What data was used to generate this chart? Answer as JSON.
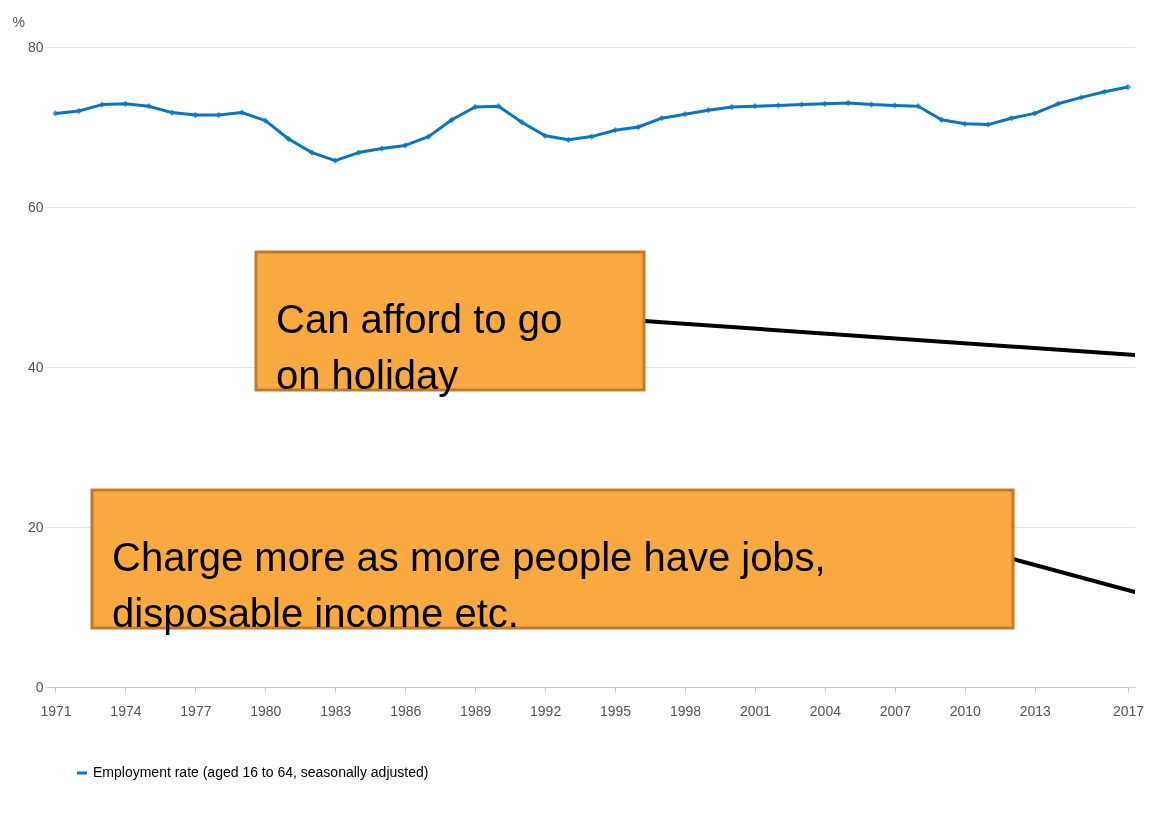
{
  "chart_data": {
    "type": "line",
    "ylabel": "%",
    "x": [
      1971,
      1972,
      1973,
      1974,
      1975,
      1976,
      1977,
      1978,
      1979,
      1980,
      1981,
      1982,
      1983,
      1984,
      1985,
      1986,
      1987,
      1988,
      1989,
      1990,
      1991,
      1992,
      1993,
      1994,
      1995,
      1996,
      1997,
      1998,
      1999,
      2000,
      2001,
      2002,
      2003,
      2004,
      2005,
      2006,
      2007,
      2008,
      2009,
      2010,
      2011,
      2012,
      2013,
      2014,
      2015,
      2016,
      2017
    ],
    "series": [
      {
        "name": "Employment rate (aged 16 to 64, seasonally adjusted)",
        "color": "#0a75c0",
        "values": [
          71.7,
          72.0,
          72.8,
          72.9,
          72.6,
          71.8,
          71.5,
          71.5,
          71.8,
          70.8,
          68.5,
          66.8,
          65.8,
          66.8,
          67.3,
          67.7,
          68.8,
          70.9,
          72.5,
          72.6,
          70.6,
          68.9,
          68.4,
          68.8,
          69.6,
          70.0,
          71.1,
          71.6,
          72.1,
          72.5,
          72.6,
          72.7,
          72.8,
          72.9,
          73.0,
          72.8,
          72.7,
          72.6,
          70.9,
          70.4,
          70.3,
          71.1,
          71.7,
          72.9,
          73.7,
          74.4,
          75.0
        ]
      }
    ],
    "xlim": [
      1970.55,
      2017.3
    ],
    "xticks": [
      1971,
      1974,
      1977,
      1980,
      1983,
      1986,
      1989,
      1992,
      1995,
      1998,
      2001,
      2004,
      2007,
      2010,
      2013,
      2017
    ],
    "ylim": [
      0,
      80
    ],
    "yticks": [
      0,
      20,
      40,
      60,
      80
    ],
    "grid": "y",
    "legend": "bottom",
    "marker": "diamond",
    "line_style": "solid",
    "annotations": [
      "Can afford to go\non holiday",
      "Charge more as more people have jobs,\ndisposable income etc."
    ]
  }
}
